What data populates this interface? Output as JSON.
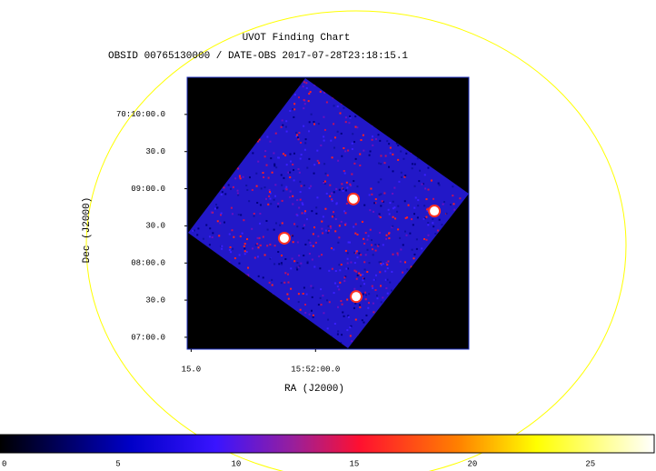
{
  "chart_data": {
    "type": "image",
    "title": "UVOT Finding Chart",
    "subtitle": "OBSID 00765130000 / DATE-OBS 2017-07-28T23:18:15.1",
    "x_label": "RA (J2000)",
    "y_label": "Dec (J2000)",
    "xlim": [
      238.0645,
      237.923
    ],
    "ylim": [
      70.114,
      70.175
    ],
    "xticks": [
      {
        "value": 238.0625,
        "label": "15.0"
      },
      {
        "value": 238.0,
        "label": "15:52:00.0"
      }
    ],
    "yticks": [
      {
        "value": 70.16667,
        "label": "70:10:00.0"
      },
      {
        "value": 70.15833,
        "label": "30.0"
      },
      {
        "value": 70.15,
        "label": "09:00.0"
      },
      {
        "value": 70.14167,
        "label": "30.0"
      },
      {
        "value": 70.13333,
        "label": "08:00.0"
      },
      {
        "value": 70.125,
        "label": "30.0"
      },
      {
        "value": 70.11667,
        "label": "07:00.0"
      }
    ],
    "sources": {
      "x": [
        237.981,
        237.9403,
        238.0157,
        237.9796
      ],
      "y": [
        70.1477,
        70.145,
        70.1389,
        70.1258
      ]
    },
    "colorbar": {
      "lim": [
        0,
        27.7
      ],
      "ticks": [
        0,
        5,
        10,
        15,
        20,
        25
      ]
    }
  }
}
